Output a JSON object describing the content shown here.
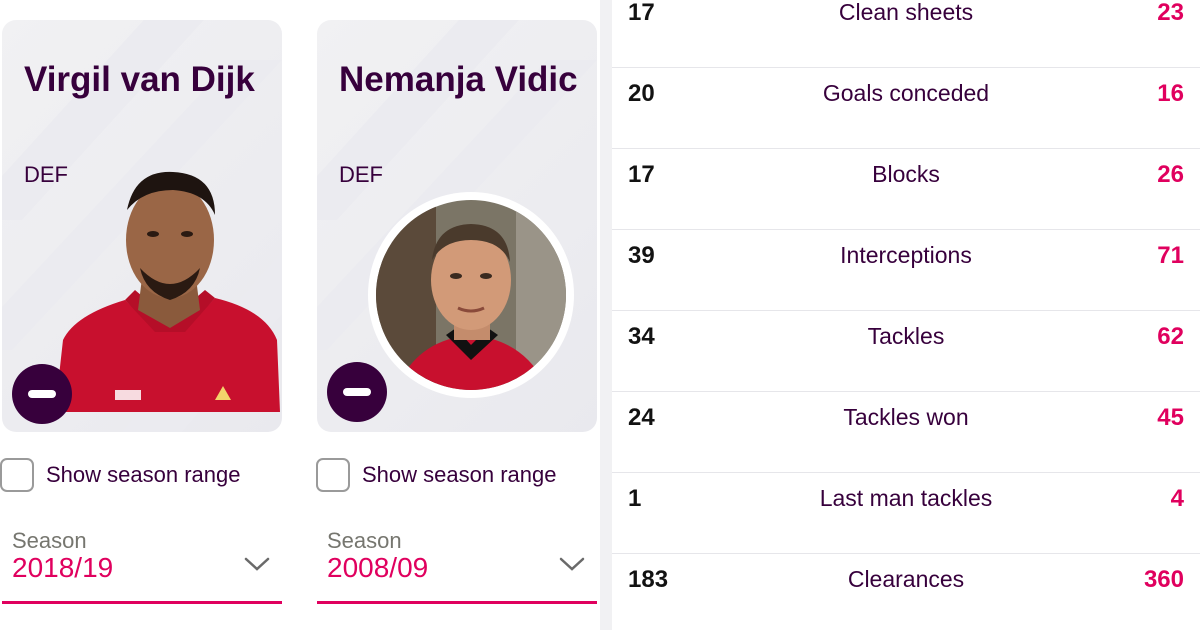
{
  "colors": {
    "brand_purple": "#37003c",
    "accent_pink": "#e0005e",
    "card_bg": "#f1f1f3"
  },
  "players": [
    {
      "name": "Virgil van Dijk",
      "position": "DEF",
      "show_range_label": "Show season range",
      "season_label": "Season",
      "season_value": "2018/19"
    },
    {
      "name": "Nemanja Vidic",
      "position": "DEF",
      "show_range_label": "Show season range",
      "season_label": "Season",
      "season_value": "2008/09"
    }
  ],
  "icons": {
    "remove": "minus-circle-icon",
    "dropdown": "chevron-down-icon",
    "checkbox": "checkbox-icon"
  },
  "stats": [
    {
      "left": "17",
      "label": "Clean sheets",
      "right": "23"
    },
    {
      "left": "20",
      "label": "Goals conceded",
      "right": "16"
    },
    {
      "left": "17",
      "label": "Blocks",
      "right": "26"
    },
    {
      "left": "39",
      "label": "Interceptions",
      "right": "71"
    },
    {
      "left": "34",
      "label": "Tackles",
      "right": "62"
    },
    {
      "left": "24",
      "label": "Tackles won",
      "right": "45"
    },
    {
      "left": "1",
      "label": "Last man tackles",
      "right": "4"
    },
    {
      "left": "183",
      "label": "Clearances",
      "right": "360"
    }
  ]
}
